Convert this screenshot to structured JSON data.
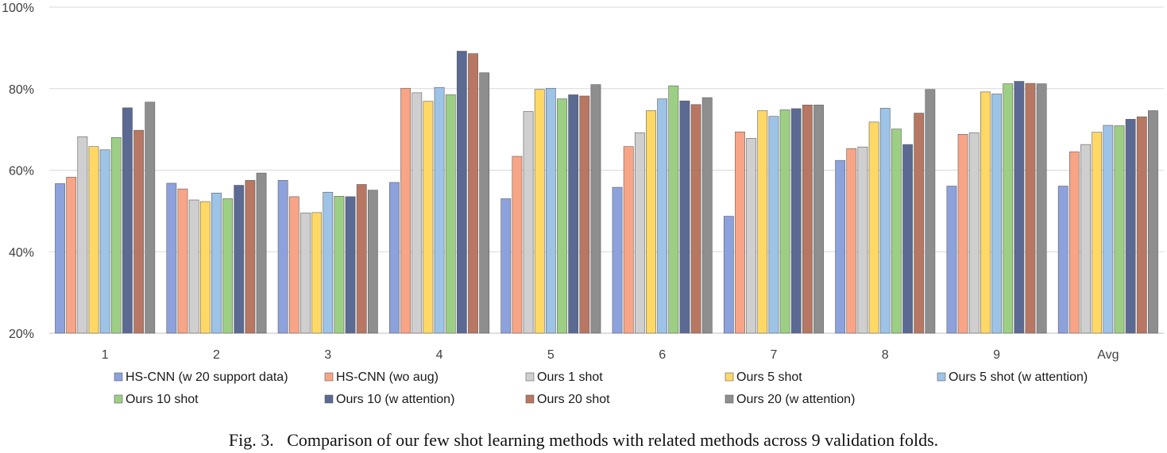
{
  "chart_data": {
    "type": "bar",
    "categories": [
      "1",
      "2",
      "3",
      "4",
      "5",
      "6",
      "7",
      "8",
      "9",
      "Avg"
    ],
    "ylim": [
      20,
      100
    ],
    "yticks": [
      20,
      40,
      60,
      80,
      100
    ],
    "ytick_format": "%",
    "grid": true,
    "legend_position": "bottom",
    "series": [
      {
        "name": "HS-CNN (w 20 support data)",
        "color": "#8da2dc",
        "values": [
          56.7,
          56.8,
          57.5,
          57.0,
          53.0,
          55.8,
          48.7,
          62.4,
          56.1,
          56.1
        ]
      },
      {
        "name": "HS-CNN (wo aug)",
        "color": "#f8a487",
        "values": [
          58.3,
          55.4,
          53.5,
          80.1,
          63.4,
          65.8,
          69.4,
          65.3,
          68.8,
          64.5
        ]
      },
      {
        "name": "Ours 1 shot",
        "color": "#cfcfcf",
        "values": [
          68.2,
          52.7,
          49.5,
          79.0,
          74.4,
          69.2,
          67.8,
          65.7,
          69.2,
          66.3
        ]
      },
      {
        "name": "Ours 5 shot",
        "color": "#ffd866",
        "values": [
          65.8,
          52.3,
          49.6,
          76.9,
          79.8,
          74.6,
          74.6,
          71.8,
          79.2,
          69.3
        ]
      },
      {
        "name": "Ours 5 shot (w attention)",
        "color": "#9dc3e6",
        "values": [
          65.0,
          54.4,
          54.6,
          80.3,
          80.1,
          77.5,
          73.2,
          75.2,
          78.7,
          71.0
        ]
      },
      {
        "name": "Ours 10 shot",
        "color": "#9ccf84",
        "values": [
          68.0,
          53.0,
          53.6,
          78.5,
          77.5,
          80.7,
          74.8,
          70.1,
          81.2,
          70.9
        ]
      },
      {
        "name": "Ours 10 (w attention)",
        "color": "#5b6a93",
        "values": [
          75.3,
          56.3,
          53.5,
          89.2,
          78.5,
          77.0,
          75.1,
          66.3,
          81.8,
          72.5
        ]
      },
      {
        "name": "Ours 20 shot",
        "color": "#b77762",
        "values": [
          69.8,
          57.5,
          56.5,
          88.6,
          78.2,
          76.1,
          76.0,
          74.0,
          81.3,
          73.1
        ]
      },
      {
        "name": "Ours 20 (w attention)",
        "color": "#8e8e8e",
        "values": [
          76.7,
          59.3,
          55.1,
          83.9,
          81.0,
          77.8,
          76.0,
          79.8,
          81.2,
          74.6
        ]
      }
    ]
  },
  "caption": "Fig. 3.   Comparison of our few shot learning methods with related methods across 9 validation folds."
}
